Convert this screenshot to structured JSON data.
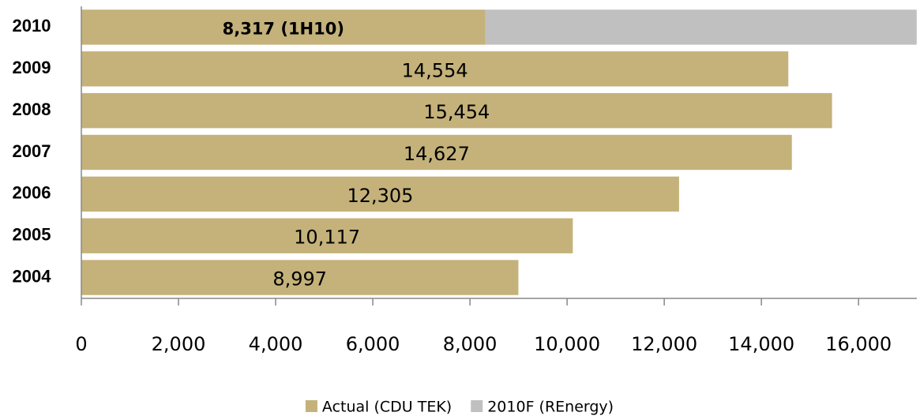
{
  "chart_data": {
    "type": "stacked-barh",
    "categories": [
      "2010",
      "2009",
      "2008",
      "2007",
      "2006",
      "2005",
      "2004"
    ],
    "series": [
      {
        "name": "Actual (CDU TEK)",
        "color": "#c4b27a",
        "values": [
          8317,
          14554,
          15454,
          14627,
          12305,
          10117,
          8997
        ],
        "value_labels": [
          "8,317 (1H10)",
          "14,554",
          "15,454",
          "14,627",
          "12,305",
          "10,117",
          "8,997"
        ]
      },
      {
        "name": "2010F (REnergy)",
        "color": "#c0c0c0",
        "values": [
          8880,
          null,
          null,
          null,
          null,
          null,
          null
        ]
      }
    ],
    "xlim": [
      0,
      17200
    ],
    "xticks": [
      0,
      {
        "value": 2000,
        "label": "2,000"
      },
      {
        "value": 4000,
        "label": "4,000"
      },
      {
        "value": 6000,
        "label": "6,000"
      },
      {
        "value": 8000,
        "label": "8,000"
      },
      {
        "value": 10000,
        "label": "10,000"
      },
      {
        "value": 12000,
        "label": "12,000"
      },
      {
        "value": 14000,
        "label": "14,000"
      },
      {
        "value": 16000,
        "label": "16,000"
      }
    ],
    "grid": false,
    "legend": "bottom"
  }
}
